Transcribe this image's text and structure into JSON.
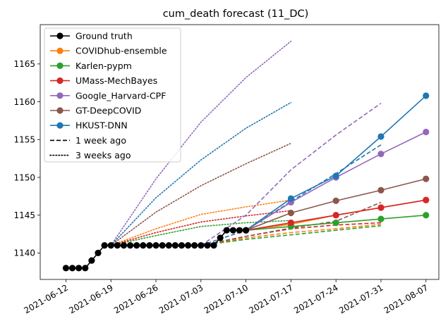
{
  "chart_data": {
    "type": "line",
    "title": "cum_death forecast (11_DC)",
    "xlabel": "",
    "ylabel": "",
    "x_ticks": [
      "2021-06-12",
      "2021-06-19",
      "2021-06-26",
      "2021-07-03",
      "2021-07-10",
      "2021-07-17",
      "2021-07-24",
      "2021-07-31",
      "2021-08-07"
    ],
    "y_ticks": [
      1140,
      1145,
      1150,
      1155,
      1160,
      1165
    ],
    "xlim": [
      "2021-06-08",
      "2021-08-09"
    ],
    "ylim": [
      1136.5,
      1170.2
    ],
    "grid": false,
    "legend_position": "top-left",
    "legend": [
      {
        "label": "Ground truth",
        "color": "#000000",
        "style": "solid",
        "marker": true
      },
      {
        "label": "COVIDhub-ensemble",
        "color": "#ff7f0e",
        "style": "solid",
        "marker": true
      },
      {
        "label": "Karlen-pypm",
        "color": "#2ca02c",
        "style": "solid",
        "marker": true
      },
      {
        "label": "UMass-MechBayes",
        "color": "#d62728",
        "style": "solid",
        "marker": true
      },
      {
        "label": "Google_Harvard-CPF",
        "color": "#9467bd",
        "style": "solid",
        "marker": true
      },
      {
        "label": "GT-DeepCOVID",
        "color": "#8c564b",
        "style": "solid",
        "marker": true
      },
      {
        "label": "HKUST-DNN",
        "color": "#1f77b4",
        "style": "solid",
        "marker": true
      },
      {
        "label": "1 week ago",
        "color": "#000000",
        "style": "dashed",
        "marker": false
      },
      {
        "label": "3 weeks ago",
        "color": "#000000",
        "style": "dotted",
        "marker": false
      }
    ],
    "ground_truth": {
      "x": [
        "2021-06-12",
        "2021-06-13",
        "2021-06-14",
        "2021-06-15",
        "2021-06-16",
        "2021-06-17",
        "2021-06-18",
        "2021-06-19",
        "2021-06-20",
        "2021-06-21",
        "2021-06-22",
        "2021-06-23",
        "2021-06-24",
        "2021-06-25",
        "2021-06-26",
        "2021-06-27",
        "2021-06-28",
        "2021-06-29",
        "2021-06-30",
        "2021-07-01",
        "2021-07-02",
        "2021-07-03",
        "2021-07-04",
        "2021-07-05",
        "2021-07-06",
        "2021-07-07",
        "2021-07-08",
        "2021-07-09",
        "2021-07-10"
      ],
      "y": [
        1138,
        1138,
        1138,
        1138,
        1139,
        1140,
        1141,
        1141,
        1141,
        1141,
        1141,
        1141,
        1141,
        1141,
        1141,
        1141,
        1141,
        1141,
        1141,
        1141,
        1141,
        1141,
        1141,
        1141,
        1142,
        1143,
        1143,
        1143,
        1143
      ]
    },
    "current": [
      {
        "name": "COVIDhub-ensemble",
        "color": "#ff7f0e",
        "x": [
          "2021-07-10",
          "2021-07-17",
          "2021-07-24",
          "2021-07-31",
          "2021-08-07"
        ],
        "y": [
          1143,
          1143.8,
          1145.0,
          1146.0,
          1147.0
        ]
      },
      {
        "name": "Karlen-pypm",
        "color": "#2ca02c",
        "x": [
          "2021-07-10",
          "2021-07-17",
          "2021-07-24",
          "2021-07-31",
          "2021-08-07"
        ],
        "y": [
          1143,
          1143.5,
          1144.0,
          1144.5,
          1145.0
        ]
      },
      {
        "name": "UMass-MechBayes",
        "color": "#d62728",
        "x": [
          "2021-07-10",
          "2021-07-17",
          "2021-07-24",
          "2021-07-31",
          "2021-08-07"
        ],
        "y": [
          1143,
          1144.0,
          1145.0,
          1146.0,
          1147.0
        ]
      },
      {
        "name": "Google_Harvard-CPF",
        "color": "#9467bd",
        "x": [
          "2021-07-10",
          "2021-07-17",
          "2021-07-24",
          "2021-07-31",
          "2021-08-07"
        ],
        "y": [
          1143,
          1146.7,
          1150.0,
          1153.1,
          1156.0
        ]
      },
      {
        "name": "GT-DeepCOVID",
        "color": "#8c564b",
        "x": [
          "2021-07-10",
          "2021-07-17",
          "2021-07-24",
          "2021-07-31",
          "2021-08-07"
        ],
        "y": [
          1143,
          1145.3,
          1146.9,
          1148.3,
          1149.8
        ]
      },
      {
        "name": "HKUST-DNN",
        "color": "#1f77b4",
        "x": [
          "2021-07-10",
          "2021-07-17",
          "2021-07-24",
          "2021-07-31",
          "2021-08-07"
        ],
        "y": [
          1143,
          1147.2,
          1150.2,
          1155.4,
          1160.8
        ]
      }
    ],
    "one_week_ago": [
      {
        "name": "COVIDhub-ensemble",
        "color": "#ff7f0e",
        "x": [
          "2021-07-03",
          "2021-07-10",
          "2021-07-17",
          "2021-07-24",
          "2021-07-31"
        ],
        "y": [
          1141,
          1142.0,
          1142.7,
          1143.2,
          1143.8
        ]
      },
      {
        "name": "Karlen-pypm",
        "color": "#2ca02c",
        "x": [
          "2021-07-03",
          "2021-07-10",
          "2021-07-17",
          "2021-07-24",
          "2021-07-31"
        ],
        "y": [
          1141,
          1141.8,
          1142.4,
          1143.0,
          1143.6
        ]
      },
      {
        "name": "UMass-MechBayes",
        "color": "#d62728",
        "x": [
          "2021-07-03",
          "2021-07-10",
          "2021-07-17",
          "2021-07-24",
          "2021-07-31"
        ],
        "y": [
          1141,
          1142.2,
          1143.2,
          1143.7,
          1144.0
        ]
      },
      {
        "name": "Google_Harvard-CPF",
        "color": "#9467bd",
        "x": [
          "2021-07-03",
          "2021-07-10",
          "2021-07-17",
          "2021-07-24",
          "2021-07-31"
        ],
        "y": [
          1141,
          1145.0,
          1151.0,
          1155.6,
          1159.8
        ]
      },
      {
        "name": "GT-DeepCOVID",
        "color": "#8c564b",
        "x": [
          "2021-07-03",
          "2021-07-10",
          "2021-07-17",
          "2021-07-24",
          "2021-07-31"
        ],
        "y": [
          1141,
          1142.2,
          1143.3,
          1144.2,
          1146.7
        ]
      },
      {
        "name": "HKUST-DNN",
        "color": "#1f77b4",
        "x": [
          "2021-07-03",
          "2021-07-10",
          "2021-07-17",
          "2021-07-24",
          "2021-07-31"
        ],
        "y": [
          1141,
          1143.0,
          1146.8,
          1150.5,
          1154.3
        ]
      }
    ],
    "three_weeks_ago": [
      {
        "name": "COVIDhub-ensemble",
        "color": "#ff7f0e",
        "x": [
          "2021-06-19",
          "2021-06-26",
          "2021-07-03",
          "2021-07-10",
          "2021-07-17"
        ],
        "y": [
          1141,
          1143.2,
          1145.1,
          1146.1,
          1147.0
        ]
      },
      {
        "name": "Karlen-pypm",
        "color": "#2ca02c",
        "x": [
          "2021-06-19",
          "2021-06-26",
          "2021-07-03",
          "2021-07-10",
          "2021-07-17"
        ],
        "y": [
          1141,
          1142.3,
          1143.5,
          1144.0,
          1144.3
        ]
      },
      {
        "name": "UMass-MechBayes",
        "color": "#d62728",
        "x": [
          "2021-06-19",
          "2021-06-26",
          "2021-07-03",
          "2021-07-10",
          "2021-07-17"
        ],
        "y": [
          1141,
          1142.7,
          1144.1,
          1144.9,
          1145.6
        ]
      },
      {
        "name": "Google_Harvard-CPF",
        "color": "#9467bd",
        "x": [
          "2021-06-19",
          "2021-06-26",
          "2021-07-03",
          "2021-07-10",
          "2021-07-17"
        ],
        "y": [
          1141,
          1149.8,
          1157.3,
          1163.2,
          1168.0
        ]
      },
      {
        "name": "GT-DeepCOVID",
        "color": "#8c564b",
        "x": [
          "2021-06-19",
          "2021-06-26",
          "2021-07-03",
          "2021-07-10",
          "2021-07-17"
        ],
        "y": [
          1141,
          1145.4,
          1148.9,
          1151.8,
          1154.5
        ]
      },
      {
        "name": "HKUST-DNN",
        "color": "#1f77b4",
        "x": [
          "2021-06-19",
          "2021-06-26",
          "2021-07-03",
          "2021-07-10",
          "2021-07-17"
        ],
        "y": [
          1141,
          1147.3,
          1152.3,
          1156.5,
          1159.9
        ]
      }
    ]
  }
}
